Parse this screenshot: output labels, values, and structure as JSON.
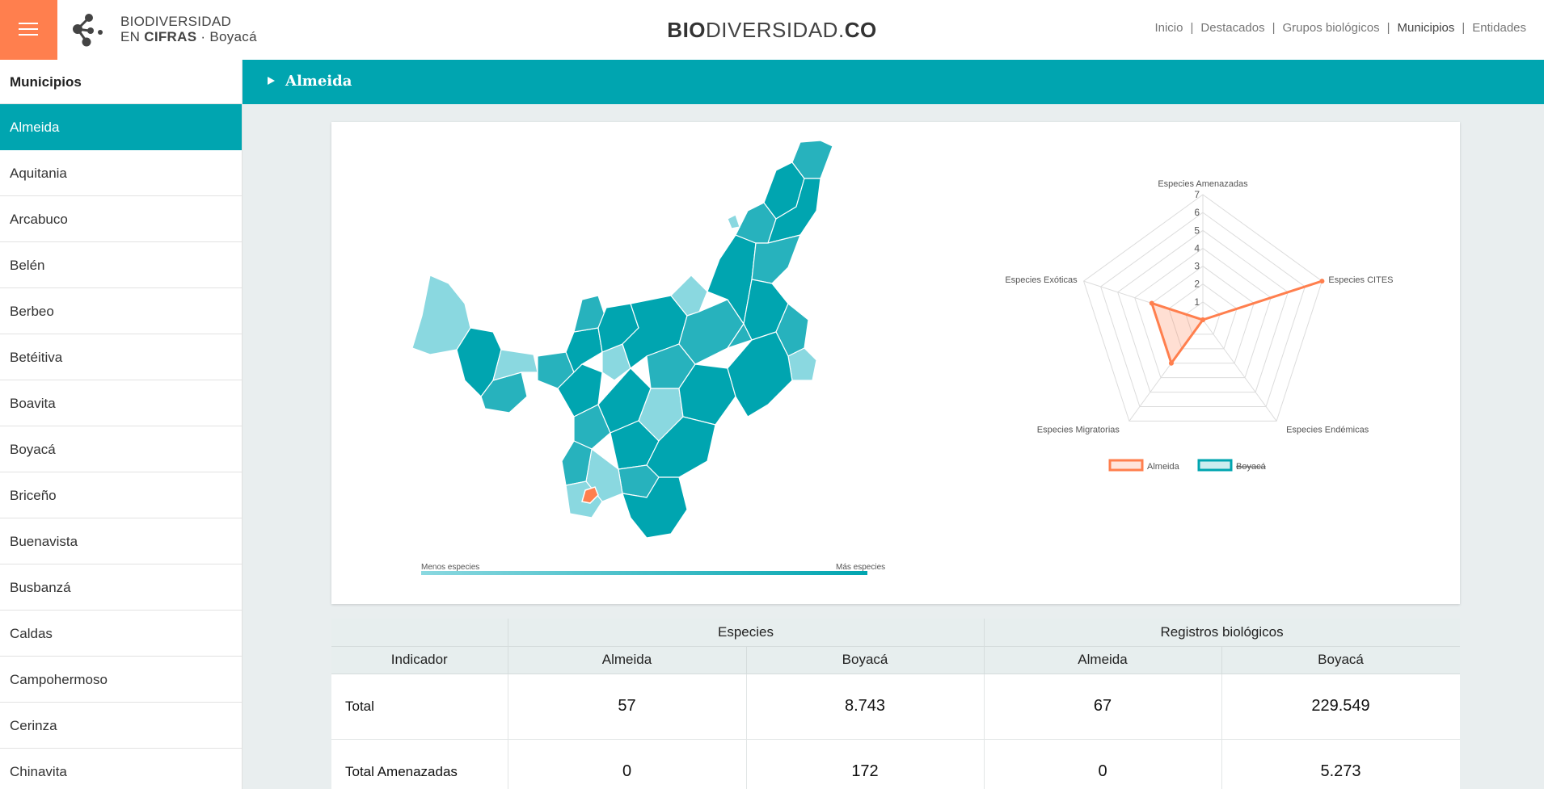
{
  "header": {
    "logo_line1": "BIODIVERSIDAD",
    "logo_line2_prefix": "EN ",
    "logo_line2_bold": "CIFRAS",
    "logo_line2_suffix": " · Boyacá",
    "site_title_bold": "BIO",
    "site_title_rest": "DIVERSIDAD.",
    "site_title_end": "CO",
    "nav": [
      "Inicio",
      "Destacados",
      "Grupos biológicos",
      "Municipios",
      "Entidades"
    ],
    "nav_active": "Municipios"
  },
  "sidebar": {
    "title": "Municipios",
    "items": [
      "Almeida",
      "Aquitania",
      "Arcabuco",
      "Belén",
      "Berbeo",
      "Betéitiva",
      "Boavita",
      "Boyacá",
      "Briceño",
      "Buenavista",
      "Busbanzá",
      "Caldas",
      "Campohermoso",
      "Cerinza",
      "Chinavita"
    ],
    "active": "Almeida"
  },
  "breadcrumb": {
    "title": "Almeida"
  },
  "map": {
    "legend_low": "Menos especies",
    "legend_high": "Más especies",
    "colors": {
      "low": "#8ad8e0",
      "mid": "#27b2bd",
      "high": "#00a5b0",
      "selected": "#ff7f4e"
    }
  },
  "chart_data": {
    "type": "radar",
    "axes": [
      "Especies Amenazadas",
      "Especies CITES",
      "Especies Endémicas",
      "Especies Migratorias",
      "Especies Exóticas"
    ],
    "ticks": [
      "1",
      "2",
      "3",
      "4",
      "5",
      "6",
      "7"
    ],
    "range": [
      0,
      7
    ],
    "series": [
      {
        "name": "Almeida",
        "values": [
          0,
          7,
          0,
          3,
          3
        ],
        "color": "#ff7f4e",
        "visible": true
      },
      {
        "name": "Boyacá",
        "values": [],
        "color": "#00a5b0",
        "visible": false
      }
    ],
    "legend_placement": "bottom"
  },
  "table": {
    "group_headers": [
      "Especies",
      "Registros biológicos"
    ],
    "columns": [
      "Indicador",
      "Almeida",
      "Boyacá",
      "Almeida",
      "Boyacá"
    ],
    "rows": [
      [
        "Total",
        "57",
        "8.743",
        "67",
        "229.549"
      ],
      [
        "Total Amenazadas",
        "0",
        "172",
        "0",
        "5.273"
      ]
    ]
  }
}
